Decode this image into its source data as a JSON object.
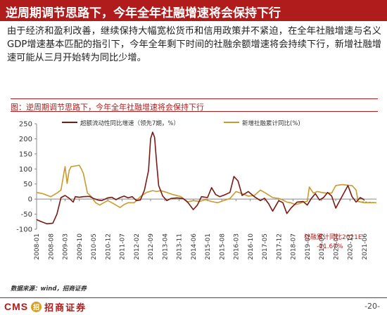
{
  "header": {
    "title": "逆周期调节思路下，今年全年社融增速将会保持下行"
  },
  "summary": "由于经济和盈利改善，继续保持大幅宽松货币和信用政策并不紧迫，在全年社融增速与名义GDP增速基本匹配的指引下，今年全年剩下时间的社融余额增速将会持续下行，新增社融增速可能从三月开始转为同比少增。",
  "figure": {
    "caption": "图：逆周期调节思路下，今年全年社融增速将会保持下行"
  },
  "chart_data": {
    "type": "line",
    "ylim": [
      -100,
      250
    ],
    "yticks": [
      "250",
      "200",
      "150",
      "100",
      "50",
      "0",
      "-50",
      "-100"
    ],
    "xlim": [
      "2008-01",
      "2021-12"
    ],
    "xticks": [
      "2008-01",
      "2008-08",
      "2009-03",
      "2009-10",
      "2010-05",
      "2010-12",
      "2011-07",
      "2012-02",
      "2012-09",
      "2013-04",
      "2013-11",
      "2014-06",
      "2015-01",
      "2015-08",
      "2016-03",
      "2016-10",
      "2017-05",
      "2017-12",
      "2018-07",
      "2019-02",
      "2019-09",
      "2020-04",
      "2020-11",
      "2021-06"
    ],
    "colors": {
      "series1": "#7a1a14",
      "series2": "#c99a2e"
    },
    "legend_position": "top",
    "series": [
      {
        "name": "超额流动性同比增速（领先7期，%）",
        "points": [
          [
            "2008-01",
            -68
          ],
          [
            "2008-03",
            -74
          ],
          [
            "2008-06",
            -82
          ],
          [
            "2008-09",
            -80
          ],
          [
            "2008-11",
            -50
          ],
          [
            "2009-01",
            5
          ],
          [
            "2009-03",
            12
          ],
          [
            "2009-05",
            3
          ],
          [
            "2009-07",
            -10
          ],
          [
            "2009-08",
            8
          ],
          [
            "2009-10",
            6
          ],
          [
            "2009-12",
            8
          ],
          [
            "2010-03",
            9
          ],
          [
            "2010-05",
            2
          ],
          [
            "2010-07",
            -3
          ],
          [
            "2010-09",
            -5
          ],
          [
            "2010-12",
            4
          ],
          [
            "2011-02",
            6
          ],
          [
            "2011-04",
            -2
          ],
          [
            "2011-06",
            5
          ],
          [
            "2011-08",
            10
          ],
          [
            "2011-10",
            4
          ],
          [
            "2011-12",
            8
          ],
          [
            "2012-02",
            -5
          ],
          [
            "2012-04",
            -3
          ],
          [
            "2012-06",
            30
          ],
          [
            "2012-08",
            95
          ],
          [
            "2012-09",
            200
          ],
          [
            "2012-10",
            222
          ],
          [
            "2012-11",
            205
          ],
          [
            "2012-12",
            120
          ],
          [
            "2013-01",
            45
          ],
          [
            "2013-03",
            10
          ],
          [
            "2013-05",
            -5
          ],
          [
            "2013-07",
            2
          ],
          [
            "2013-10",
            4
          ],
          [
            "2014-01",
            2
          ],
          [
            "2014-03",
            -8
          ],
          [
            "2014-06",
            -35
          ],
          [
            "2014-08",
            -20
          ],
          [
            "2014-10",
            8
          ],
          [
            "2015-01",
            5
          ],
          [
            "2015-03",
            38
          ],
          [
            "2015-05",
            15
          ],
          [
            "2015-07",
            8
          ],
          [
            "2015-09",
            13
          ],
          [
            "2015-12",
            22
          ],
          [
            "2016-02",
            75
          ],
          [
            "2016-04",
            60
          ],
          [
            "2016-06",
            12
          ],
          [
            "2016-09",
            25
          ],
          [
            "2016-12",
            8
          ],
          [
            "2017-03",
            -5
          ],
          [
            "2017-05",
            3
          ],
          [
            "2017-07",
            -15
          ],
          [
            "2017-09",
            -40
          ],
          [
            "2017-12",
            -5
          ],
          [
            "2018-02",
            -12
          ],
          [
            "2018-04",
            -48
          ],
          [
            "2018-06",
            -30
          ],
          [
            "2018-09",
            -10
          ],
          [
            "2018-12",
            -8
          ],
          [
            "2019-02",
            -20
          ],
          [
            "2019-04",
            2
          ],
          [
            "2019-06",
            18
          ],
          [
            "2019-08",
            -3
          ],
          [
            "2019-10",
            5
          ],
          [
            "2019-12",
            22
          ],
          [
            "2020-02",
            10
          ],
          [
            "2020-04",
            -30
          ],
          [
            "2020-06",
            -5
          ],
          [
            "2020-08",
            20
          ],
          [
            "2020-10",
            45
          ],
          [
            "2020-12",
            8
          ],
          [
            "2021-02",
            -10
          ],
          [
            "2021-04",
            5
          ],
          [
            "2021-06",
            -2
          ]
        ]
      },
      {
        "name": "新增社融累计同比(%)",
        "points": [
          [
            "2008-01",
            22
          ],
          [
            "2008-04",
            18
          ],
          [
            "2008-08",
            8
          ],
          [
            "2008-11",
            20
          ],
          [
            "2009-01",
            30
          ],
          [
            "2009-02",
            70
          ],
          [
            "2009-03",
            108
          ],
          [
            "2009-04",
            52
          ],
          [
            "2009-05",
            95
          ],
          [
            "2009-06",
            108
          ],
          [
            "2009-08",
            110
          ],
          [
            "2009-10",
            112
          ],
          [
            "2009-11",
            100
          ],
          [
            "2009-12",
            85
          ],
          [
            "2010-02",
            20
          ],
          [
            "2010-04",
            8
          ],
          [
            "2010-06",
            -12
          ],
          [
            "2010-08",
            -20
          ],
          [
            "2010-10",
            -12
          ],
          [
            "2010-12",
            -5
          ],
          [
            "2011-02",
            -12
          ],
          [
            "2011-04",
            -20
          ],
          [
            "2011-06",
            -28
          ],
          [
            "2011-08",
            -18
          ],
          [
            "2011-10",
            -12
          ],
          [
            "2012-01",
            -12
          ],
          [
            "2012-04",
            8
          ],
          [
            "2012-07",
            22
          ],
          [
            "2012-10",
            28
          ],
          [
            "2012-12",
            25
          ],
          [
            "2013-02",
            28
          ],
          [
            "2013-05",
            22
          ],
          [
            "2013-08",
            15
          ],
          [
            "2013-12",
            8
          ],
          [
            "2014-03",
            -10
          ],
          [
            "2014-06",
            -5
          ],
          [
            "2014-09",
            -8
          ],
          [
            "2014-12",
            -2
          ],
          [
            "2015-03",
            -8
          ],
          [
            "2015-06",
            -12
          ],
          [
            "2015-09",
            -5
          ],
          [
            "2015-12",
            2
          ],
          [
            "2016-03",
            25
          ],
          [
            "2016-06",
            18
          ],
          [
            "2016-09",
            10
          ],
          [
            "2016-12",
            12
          ],
          [
            "2017-03",
            30
          ],
          [
            "2017-06",
            18
          ],
          [
            "2017-09",
            5
          ],
          [
            "2017-12",
            2
          ],
          [
            "2018-02",
            -3
          ],
          [
            "2018-04",
            -10
          ],
          [
            "2018-06",
            -12
          ],
          [
            "2018-08",
            -18
          ],
          [
            "2018-10",
            -15
          ],
          [
            "2018-12",
            -10
          ],
          [
            "2019-02",
            -7
          ],
          [
            "2019-03",
            40
          ],
          [
            "2019-05",
            20
          ],
          [
            "2019-07",
            25
          ],
          [
            "2019-09",
            22
          ],
          [
            "2019-11",
            20
          ],
          [
            "2020-02",
            20
          ],
          [
            "2020-04",
            45
          ],
          [
            "2020-07",
            48
          ],
          [
            "2020-10",
            46
          ],
          [
            "2020-12",
            45
          ],
          [
            "2021-02",
            30
          ],
          [
            "2021-03",
            -8
          ],
          [
            "2021-06",
            -12
          ],
          [
            "2021-09",
            -12
          ],
          [
            "2021-12",
            -12
          ]
        ]
      }
    ],
    "annotations": [
      {
        "text": "社融累计同比2021E",
        "color": "#b01c1c"
      },
      {
        "text": "-11.67%",
        "color": "#b01c1c"
      }
    ]
  },
  "source": "数据来源：wind，招商证券",
  "footer": {
    "logo_text": "CMS",
    "logo_badge": "招",
    "logo_cn": "招商证券",
    "page": "-20-"
  }
}
